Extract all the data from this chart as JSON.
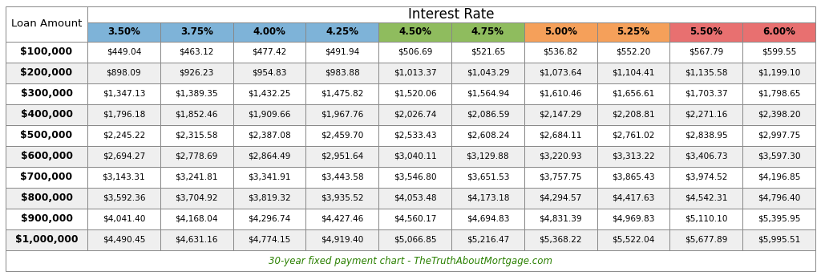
{
  "title": "Interest Rate",
  "footer": "30-year fixed payment chart - TheTruthAboutMortgage.com",
  "col_header": "Loan Amount",
  "loan_amounts": [
    "$100,000",
    "$200,000",
    "$300,000",
    "$400,000",
    "$500,000",
    "$600,000",
    "$700,000",
    "$800,000",
    "$900,000",
    "$1,000,000"
  ],
  "rates": [
    "3.50%",
    "3.75%",
    "4.00%",
    "4.25%",
    "4.50%",
    "4.75%",
    "5.00%",
    "5.25%",
    "5.50%",
    "6.00%"
  ],
  "rate_colors": [
    "#7eb3d8",
    "#7eb3d8",
    "#7eb3d8",
    "#7eb3d8",
    "#8fbc5e",
    "#8fbc5e",
    "#f5a05a",
    "#f5a05a",
    "#e87070",
    "#e87070"
  ],
  "values": [
    [
      "$449.04",
      "$463.12",
      "$477.42",
      "$491.94",
      "$506.69",
      "$521.65",
      "$536.82",
      "$552.20",
      "$567.79",
      "$599.55"
    ],
    [
      "$898.09",
      "$926.23",
      "$954.83",
      "$983.88",
      "$1,013.37",
      "$1,043.29",
      "$1,073.64",
      "$1,104.41",
      "$1,135.58",
      "$1,199.10"
    ],
    [
      "$1,347.13",
      "$1,389.35",
      "$1,432.25",
      "$1,475.82",
      "$1,520.06",
      "$1,564.94",
      "$1,610.46",
      "$1,656.61",
      "$1,703.37",
      "$1,798.65"
    ],
    [
      "$1,796.18",
      "$1,852.46",
      "$1,909.66",
      "$1,967.76",
      "$2,026.74",
      "$2,086.59",
      "$2,147.29",
      "$2,208.81",
      "$2,271.16",
      "$2,398.20"
    ],
    [
      "$2,245.22",
      "$2,315.58",
      "$2,387.08",
      "$2,459.70",
      "$2,533.43",
      "$2,608.24",
      "$2,684.11",
      "$2,761.02",
      "$2,838.95",
      "$2,997.75"
    ],
    [
      "$2,694.27",
      "$2,778.69",
      "$2,864.49",
      "$2,951.64",
      "$3,040.11",
      "$3,129.88",
      "$3,220.93",
      "$3,313.22",
      "$3,406.73",
      "$3,597.30"
    ],
    [
      "$3,143.31",
      "$3,241.81",
      "$3,341.91",
      "$3,443.58",
      "$3,546.80",
      "$3,651.53",
      "$3,757.75",
      "$3,865.43",
      "$3,974.52",
      "$4,196.85"
    ],
    [
      "$3,592.36",
      "$3,704.92",
      "$3,819.32",
      "$3,935.52",
      "$4,053.48",
      "$4,173.18",
      "$4,294.57",
      "$4,417.63",
      "$4,542.31",
      "$4,796.40"
    ],
    [
      "$4,041.40",
      "$4,168.04",
      "$4,296.74",
      "$4,427.46",
      "$4,560.17",
      "$4,694.83",
      "$4,831.39",
      "$4,969.83",
      "$5,110.10",
      "$5,395.95"
    ],
    [
      "$4,490.45",
      "$4,631.16",
      "$4,774.15",
      "$4,919.40",
      "$5,066.85",
      "$5,216.47",
      "$5,368.22",
      "$5,522.04",
      "$5,677.89",
      "$5,995.51"
    ]
  ],
  "bg_color": "#ffffff",
  "row_alt_colors": [
    "#ffffff",
    "#efefef"
  ],
  "border_color": "#888888",
  "footer_color": "#2a8000",
  "fig_width": 10.24,
  "fig_height": 3.44,
  "dpi": 100
}
